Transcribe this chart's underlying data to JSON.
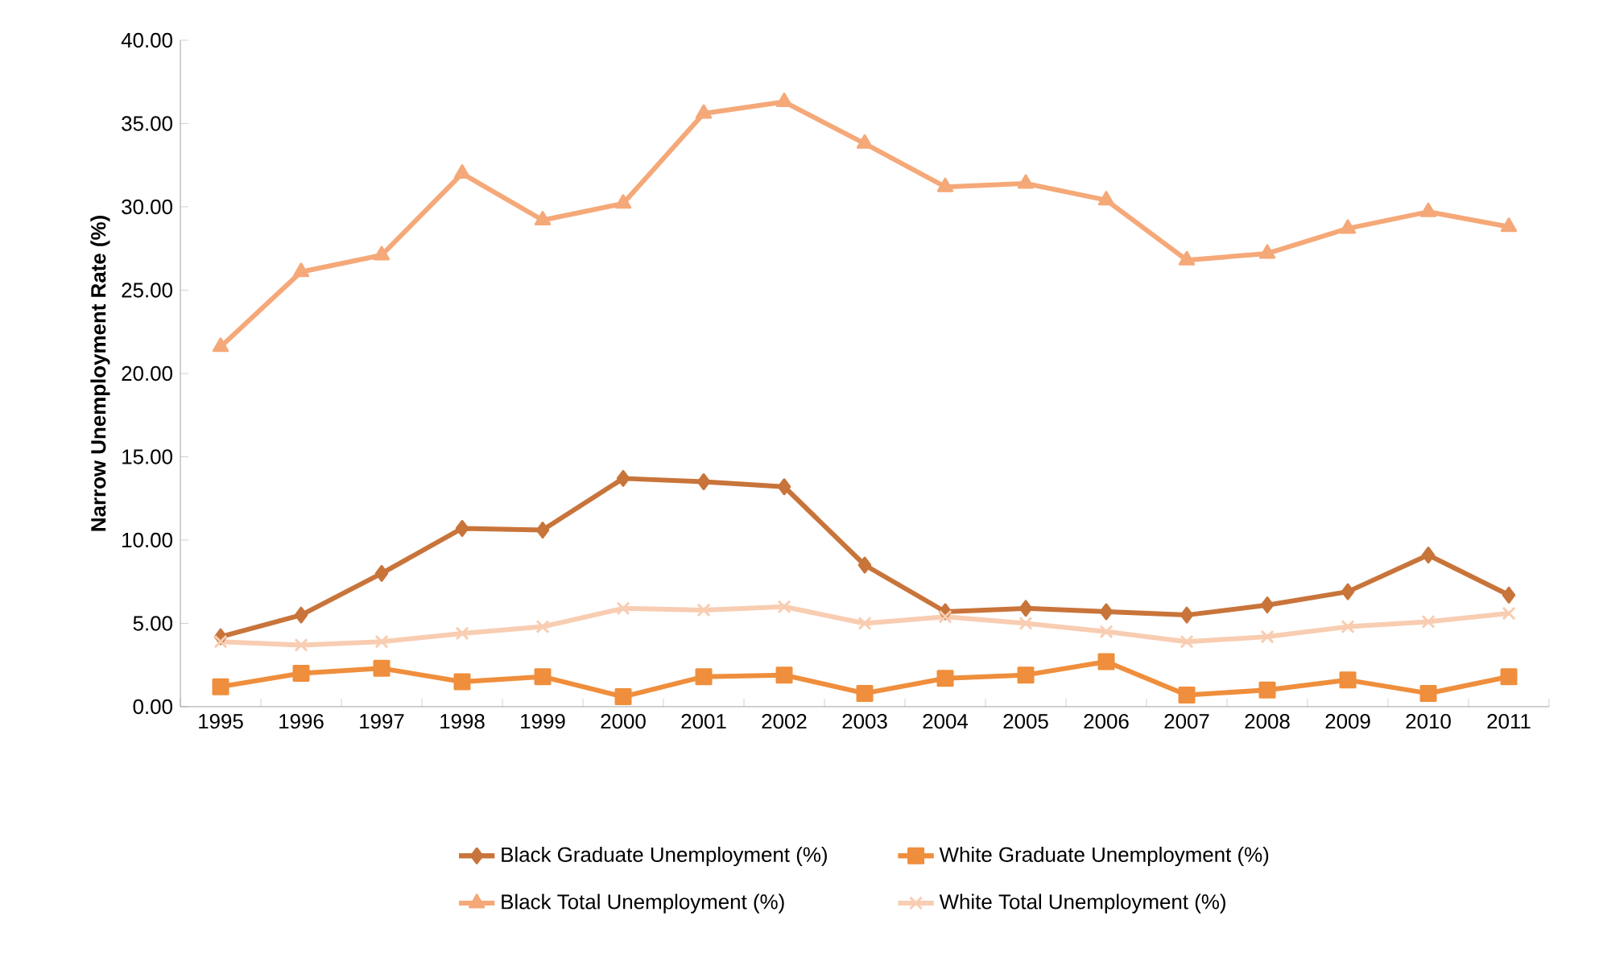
{
  "chart_data": {
    "type": "line",
    "ylabel": "Narrow Unemployment Rate (%)",
    "categories": [
      "1995",
      "1996",
      "1997",
      "1998",
      "1999",
      "2000",
      "2001",
      "2002",
      "2003",
      "2004",
      "2005",
      "2006",
      "2007",
      "2008",
      "2009",
      "2010",
      "2011"
    ],
    "series": [
      {
        "name": "Black Graduate Unemployment (%)",
        "color": "#c8743a",
        "marker": "diamond",
        "values": [
          4.2,
          5.5,
          8.0,
          10.7,
          10.6,
          13.7,
          13.5,
          13.2,
          8.5,
          5.7,
          5.9,
          5.7,
          5.5,
          6.1,
          6.9,
          9.1,
          6.7
        ]
      },
      {
        "name": "White Graduate Unemployment (%)",
        "color": "#ef8e3c",
        "marker": "square",
        "values": [
          1.2,
          2.0,
          2.3,
          1.5,
          1.8,
          0.6,
          1.8,
          1.9,
          0.8,
          1.7,
          1.9,
          2.7,
          0.7,
          1.0,
          1.6,
          0.8,
          1.8
        ]
      },
      {
        "name": "Black Total Unemployment  (%)",
        "color": "#f5a878",
        "marker": "triangle",
        "values": [
          21.6,
          26.1,
          27.1,
          32.0,
          29.2,
          30.2,
          35.6,
          36.3,
          33.8,
          31.2,
          31.4,
          30.4,
          26.8,
          27.2,
          28.7,
          29.7,
          28.8
        ]
      },
      {
        "name": "White Total Unemployment (%)",
        "color": "#f8cdb2",
        "marker": "cross",
        "values": [
          3.9,
          3.7,
          3.9,
          4.4,
          4.8,
          5.9,
          5.8,
          6.0,
          5.0,
          5.4,
          5.0,
          4.5,
          3.9,
          4.2,
          4.8,
          5.1,
          5.6
        ]
      }
    ],
    "ylim": [
      0,
      40
    ],
    "yticks": [
      {
        "value": 0,
        "label": "0.00"
      },
      {
        "value": 5,
        "label": "5.00"
      },
      {
        "value": 10,
        "label": "10.00"
      },
      {
        "value": 15,
        "label": "15.00"
      },
      {
        "value": 20,
        "label": "20.00"
      },
      {
        "value": 25,
        "label": "25.00"
      },
      {
        "value": 30,
        "label": "30.00"
      },
      {
        "value": 35,
        "label": "35.00"
      },
      {
        "value": 40,
        "label": "40.00"
      }
    ],
    "grid": false,
    "legend": "bottom"
  }
}
